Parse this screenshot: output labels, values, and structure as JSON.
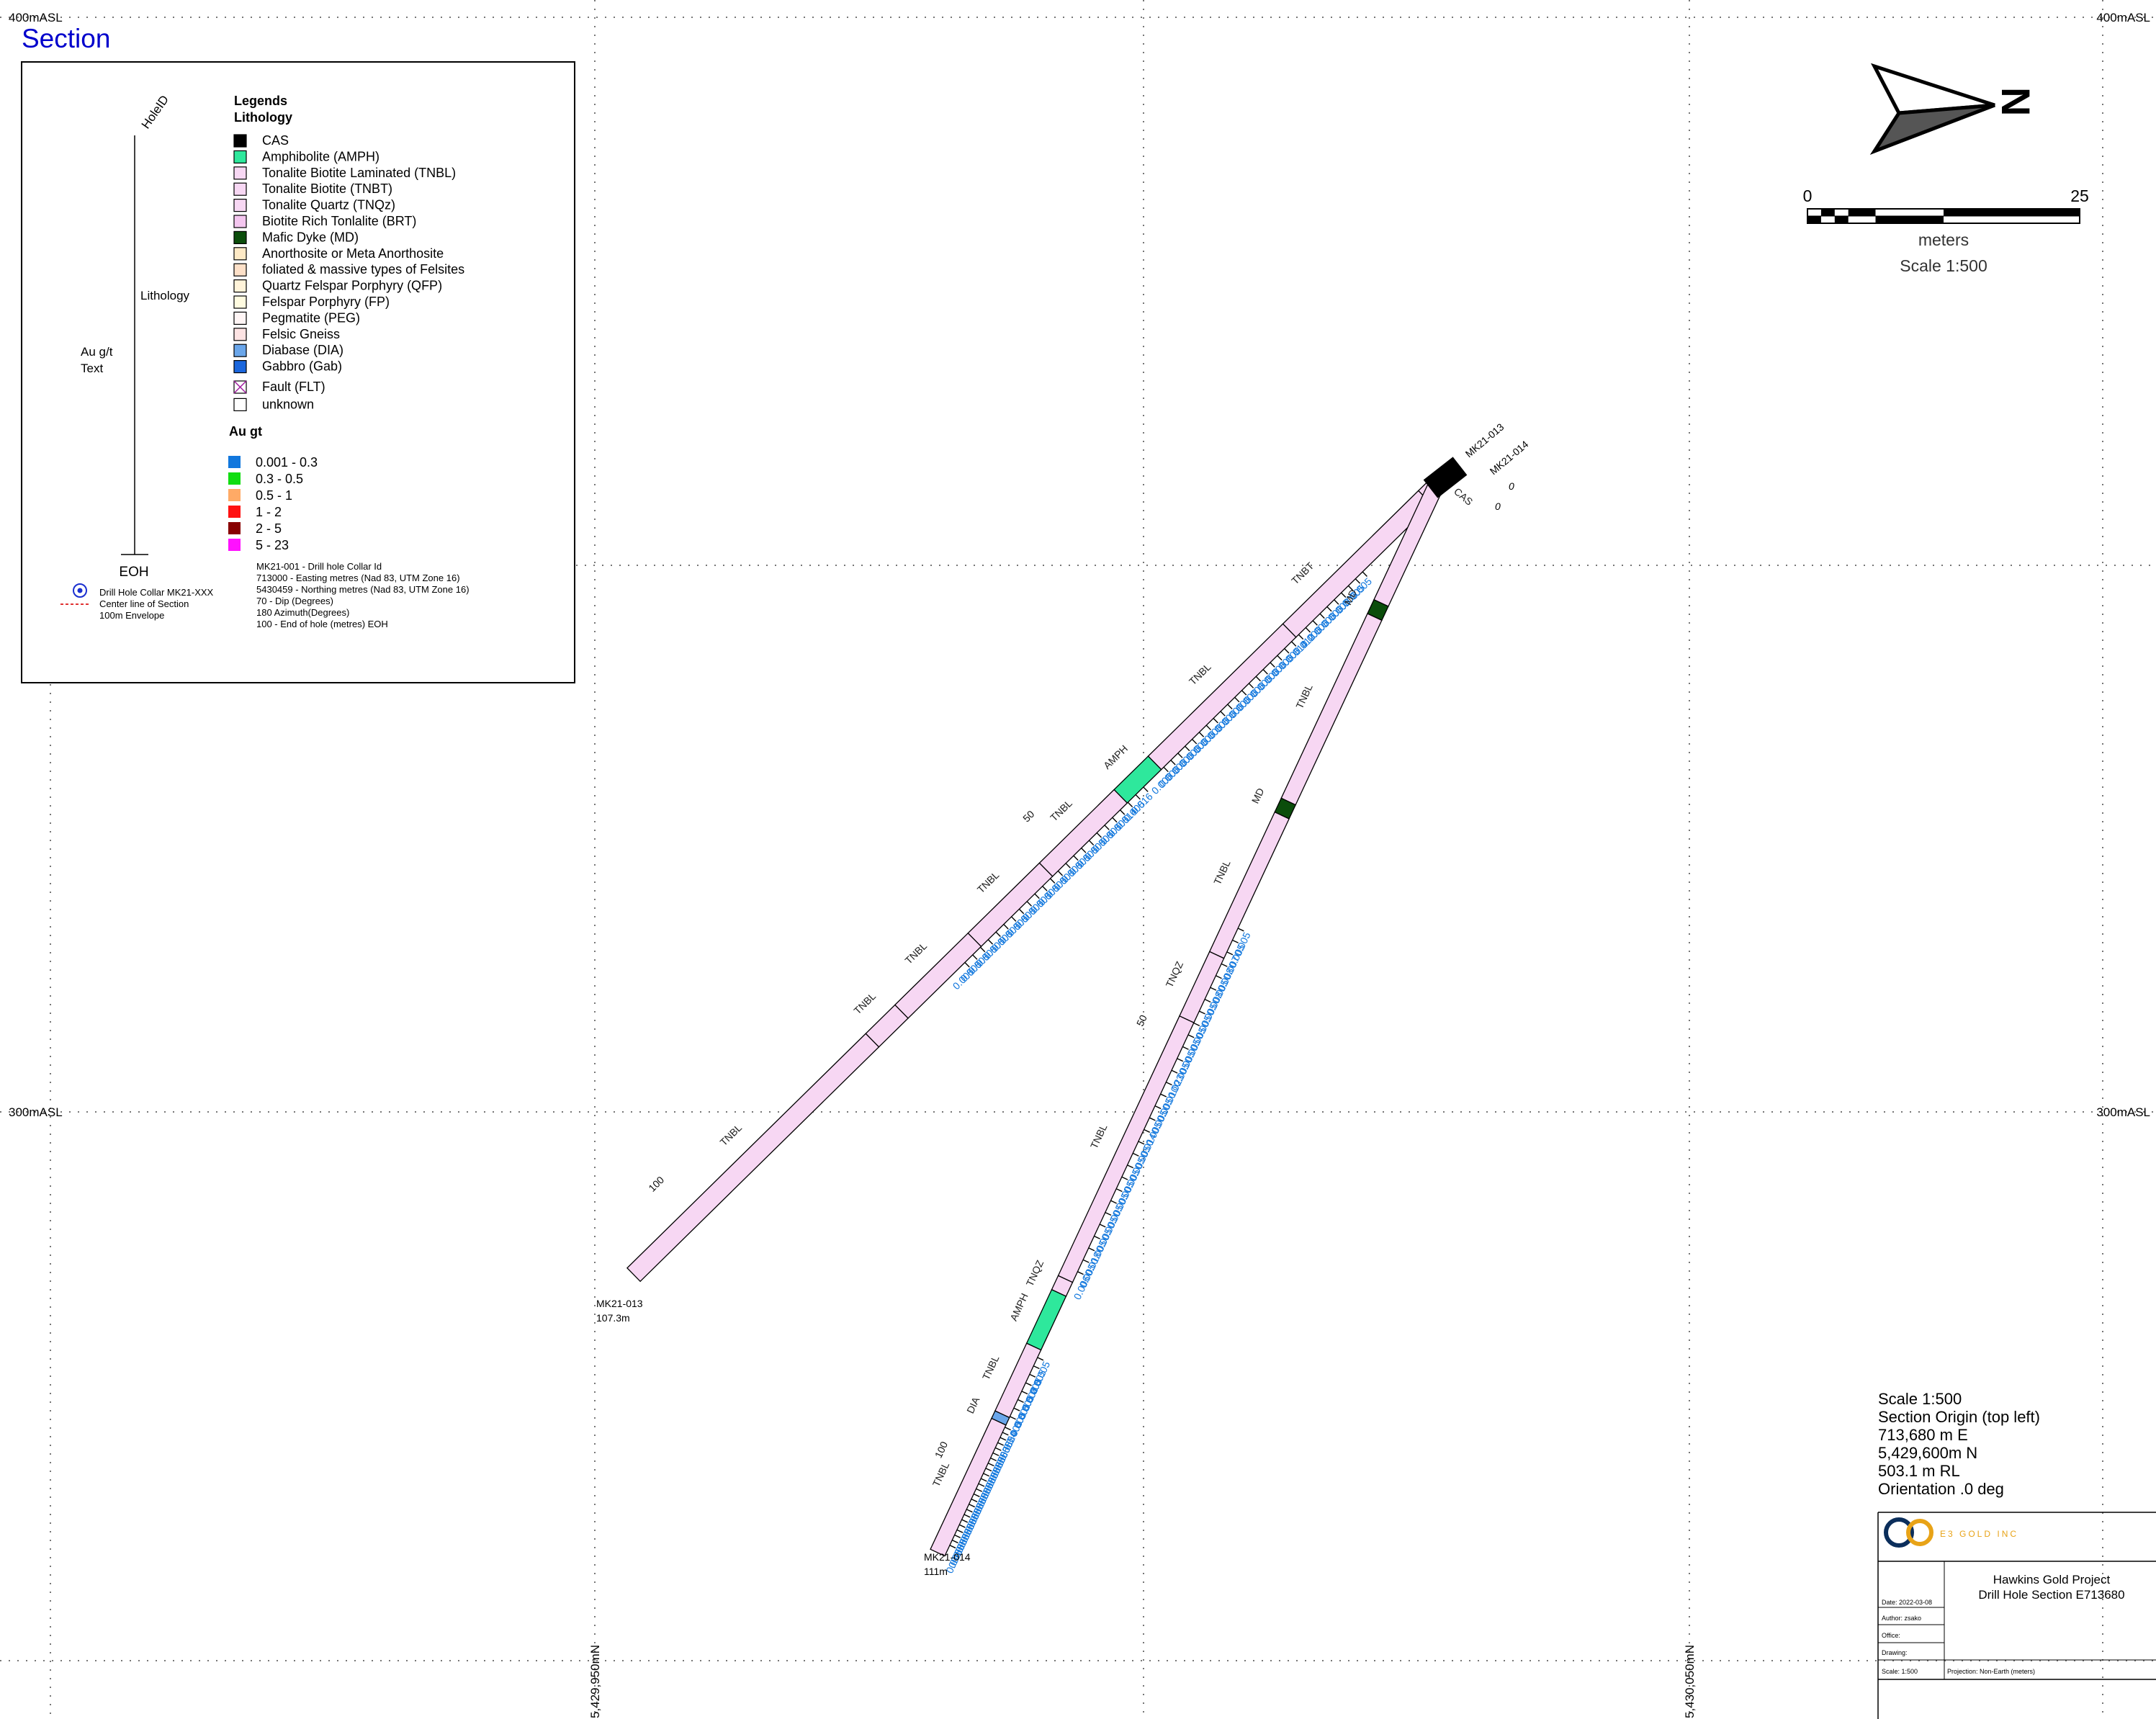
{
  "title": "Section",
  "elevations": {
    "top_label": "400mASL",
    "mid_label": "300mASL"
  },
  "northings": {
    "left_label": "5,429,950mN",
    "right_label": "5,430,050mN"
  },
  "colors": {
    "title": "#0000cc",
    "pink": "#f7d7f3",
    "amph": "#2ee89c",
    "mafic": "#0b4d0b",
    "assay_blue": "#1177dd",
    "grid": "#777777"
  },
  "legend": {
    "schematic": {
      "holeid": "HoleID",
      "lithology": "Lithology",
      "au_line1": "Au g/t",
      "au_line2": "Text",
      "eoh": "EOH"
    },
    "symbols": [
      {
        "icon": "collar-icon",
        "text": "Drill Hole Collar MK21-XXX"
      },
      {
        "icon": "centerline-icon",
        "text": "Center line of Section"
      },
      {
        "icon": "envelope-icon",
        "text": "100m Envelope"
      }
    ],
    "heading1": "Legends",
    "heading2": "Lithology",
    "lithology": [
      {
        "label": "CAS",
        "color": "#000000"
      },
      {
        "label": "Amphibolite (AMPH)",
        "color": "#2ee89c"
      },
      {
        "label": "Tonalite Biotite Laminated (TNBL)",
        "color": "#f7d7f3"
      },
      {
        "label": "Tonalite Biotite (TNBT)",
        "color": "#f7d7f3"
      },
      {
        "label": "Tonalite Quartz (TNQz)",
        "color": "#f7d7f3"
      },
      {
        "label": "Biotite Rich Tonlalite (BRT)",
        "color": "#f4c6ef"
      },
      {
        "label": "Mafic Dyke (MD)",
        "color": "#0b4d0b"
      },
      {
        "label": "Anorthosite or Meta Anorthosite",
        "color": "#fde9c5"
      },
      {
        "label": "foliated & massive types of Felsites",
        "color": "#fde0c8"
      },
      {
        "label": "Quartz Felspar Porphyry (QFP)",
        "color": "#fff3d9"
      },
      {
        "label": "Felspar Porphyry (FP)",
        "color": "#fffbe0"
      },
      {
        "label": "Pegmatite (PEG)",
        "color": "#fff5f5"
      },
      {
        "label": "Felsic Gneiss",
        "color": "#fde3e3"
      },
      {
        "label": "Diabase (DIA)",
        "color": "#6aa6ea"
      },
      {
        "label": "Gabbro (Gab)",
        "color": "#1a66dd"
      },
      {
        "label": "Fault (FLT)",
        "color": "#ffffff"
      },
      {
        "label": "unknown",
        "color": "#ffffff"
      }
    ],
    "au_heading": "Au gt",
    "au_classes": [
      {
        "label": "0.001 - 0.3",
        "color": "#1177dd"
      },
      {
        "label": "0.3 - 0.5",
        "color": "#11dd11"
      },
      {
        "label": "0.5 - 1",
        "color": "#ffaa66"
      },
      {
        "label": "1 - 2",
        "color": "#ff1111"
      },
      {
        "label": "2 - 5",
        "color": "#880000"
      },
      {
        "label": "5 - 23",
        "color": "#ff11ff"
      }
    ],
    "collar_info": [
      "MK21-001 - Drill hole Collar Id",
      "713000 - Easting metres (Nad 83, UTM Zone 16)",
      "5430459 - Northing metres  (Nad 83, UTM Zone 16)",
      "70 - Dip (Degrees)",
      "180 Azimuth(Degrees)",
      "100 - End of hole (metres) EOH"
    ]
  },
  "north_arrow": {
    "letter": "N"
  },
  "scale_bar": {
    "start": "0",
    "end": "25",
    "unit": "meters",
    "scale": "Scale 1:500"
  },
  "holes": [
    {
      "id": "MK21-013",
      "length_label": "107.3m",
      "assays": [
        "0.005",
        "0.005",
        "0.005",
        "0.005",
        "0.005",
        "0.005",
        "0.005",
        "0.005",
        "0.012",
        "0.014",
        "0.005",
        "0.005",
        "0.006",
        "0.005",
        "0.005",
        "0.005",
        "0.005",
        "0.005",
        "0.005",
        "0.005",
        "0.005",
        "0.005",
        "0.005",
        "0.005",
        "0.005",
        "0.005",
        "0.005",
        "0.005",
        "0.005",
        "0.016",
        "0.005",
        "0.014",
        "0.005",
        "0.005",
        "0.005",
        "0.005",
        "0.005",
        "0.005",
        "0.005",
        "0.005",
        "0.005",
        "0.005",
        "0.005",
        "0.005",
        "0.005",
        "0.005",
        "0.005",
        "0.005",
        "0.005",
        "0.005",
        "0.005",
        "0.005",
        "0.005"
      ],
      "intervals": [
        "CAS",
        "TNBT",
        "TNBL",
        "AMPH",
        "TNBL",
        "TNBL",
        "TNBL",
        "TNBL",
        "TNBL"
      ],
      "depth_marks": [
        "0",
        "50",
        "100"
      ]
    },
    {
      "id": "MK21-014",
      "length_label": "111m",
      "assays": [
        "0.005",
        "0.005",
        "0.007",
        "0.008",
        "0.005",
        "0.008",
        "0.005",
        "0.005",
        "0.005",
        "0.005",
        "0.005",
        "0.005",
        "0.023",
        "0.010",
        "0.005",
        "0.005",
        "0.005",
        "0.014",
        "0.005",
        "0.005",
        "0.005",
        "0.005",
        "0.005",
        "0.005",
        "0.005",
        "0.005",
        "0.005",
        "0.018",
        "0.005",
        "0.006",
        "0.005",
        "0.005",
        "0.005",
        "0.008",
        "0.005",
        "0.005",
        "0.005",
        "0.005",
        "0.04",
        "0.005",
        "0.005",
        "0.005",
        "0.005",
        "0.005",
        "0.005",
        "0.005",
        "0.005",
        "0.005",
        "0.005",
        "0.005",
        "0.005",
        "0.005",
        "0.005",
        "0.005",
        "0.005",
        "0.005",
        "0.005",
        "0.005",
        "0.005",
        "0.005",
        "0.005",
        "0.005"
      ],
      "intervals": [
        "MD",
        "TNBL",
        "MD",
        "TNBL",
        "TNQZ",
        "TNBL",
        "TNQZ",
        "AMPH",
        "TNBL",
        "DIA",
        "TNBL"
      ],
      "depth_marks": [
        "0",
        "50",
        "100"
      ]
    }
  ],
  "section_info": [
    "Scale 1:500",
    "Section Origin (top left)",
    "713,680 m E",
    "5,429,600m N",
    "503.1 m RL",
    "Orientation .0 deg"
  ],
  "title_block": {
    "logo_text": "E3 GOLD INC",
    "project": "Hawkins Gold Project",
    "drawing_title": "Drill Hole Section E713680",
    "date": "Date: 2022-03-08",
    "author": "Author: zsako",
    "office": "Office:",
    "drawing": "Drawing:",
    "scale": "Scale: 1:500",
    "projection": "Projection: Non-Earth (meters)"
  }
}
